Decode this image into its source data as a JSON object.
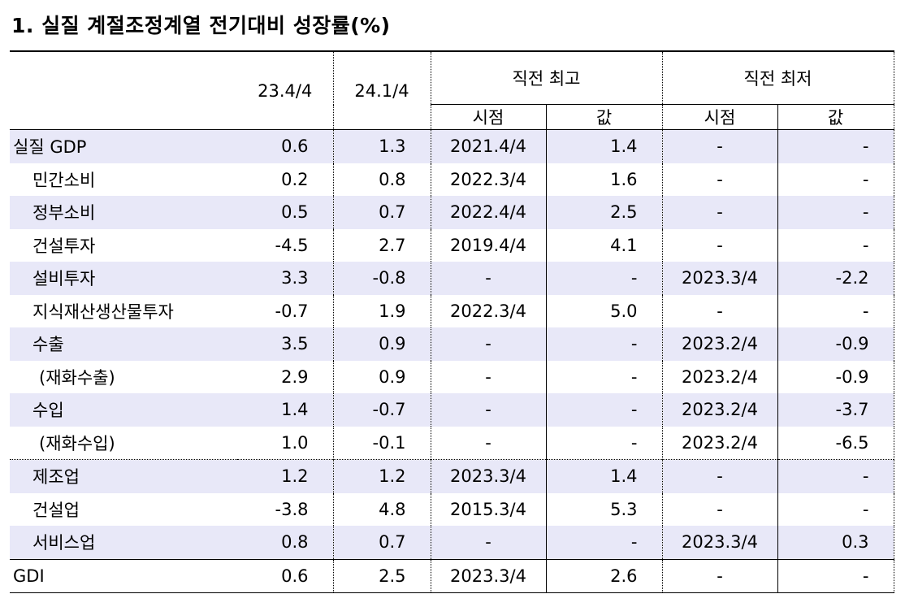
{
  "title": "1. 실질 계절조정계열 전기대비 성장률(%)",
  "table": {
    "header": {
      "columns": [
        "23.4/4",
        "24.1/4"
      ],
      "groups": [
        {
          "label": "직전 최고",
          "sub": [
            "시점",
            "값"
          ]
        },
        {
          "label": "직전 최저",
          "sub": [
            "시점",
            "값"
          ]
        }
      ]
    },
    "rows": [
      [
        "실질 GDP",
        "0.6",
        "1.3",
        "2021.4/4",
        "1.4",
        "-",
        "-"
      ],
      [
        "민간소비",
        "0.2",
        "0.8",
        "2022.3/4",
        "1.6",
        "-",
        "-"
      ],
      [
        "정부소비",
        "0.5",
        "0.7",
        "2022.4/4",
        "2.5",
        "-",
        "-"
      ],
      [
        "건설투자",
        "-4.5",
        "2.7",
        "2019.4/4",
        "4.1",
        "-",
        "-"
      ],
      [
        "설비투자",
        "3.3",
        "-0.8",
        "-",
        "-",
        "2023.3/4",
        "-2.2"
      ],
      [
        "지식재산생산물투자",
        "-0.7",
        "1.9",
        "2022.3/4",
        "5.0",
        "-",
        "-"
      ],
      [
        "수출",
        "3.5",
        "0.9",
        "-",
        "-",
        "2023.2/4",
        "-0.9"
      ],
      [
        "(재화수출)",
        "2.9",
        "0.9",
        "-",
        "-",
        "2023.2/4",
        "-0.9"
      ],
      [
        "수입",
        "1.4",
        "-0.7",
        "-",
        "-",
        "2023.2/4",
        "-3.7"
      ],
      [
        "(재화수입)",
        "1.0",
        "-0.1",
        "-",
        "-",
        "2023.2/4",
        "-6.5"
      ],
      [
        "제조업",
        "1.2",
        "1.2",
        "2023.3/4",
        "1.4",
        "-",
        "-"
      ],
      [
        "건설업",
        "-3.8",
        "4.8",
        "2015.3/4",
        "5.3",
        "-",
        "-"
      ],
      [
        "서비스업",
        "0.8",
        "0.7",
        "-",
        "-",
        "2023.3/4",
        "0.3"
      ],
      [
        "GDI",
        "0.6",
        "2.5",
        "2023.3/4",
        "2.6",
        "-",
        "-"
      ]
    ]
  }
}
